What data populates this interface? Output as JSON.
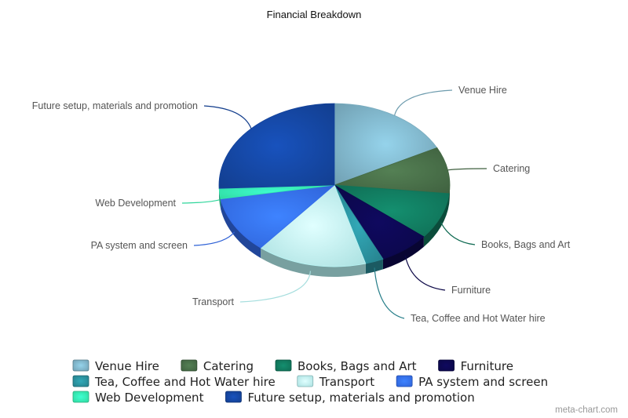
{
  "chart_data": {
    "type": "pie",
    "title": "Financial Breakdown",
    "credit": "meta-chart.com",
    "legend_placement": "bottom",
    "slices": [
      {
        "label": "Venue Hire",
        "value": 17,
        "color": "#6e9cae"
      },
      {
        "label": "Catering",
        "value": 9,
        "color": "#3e5f3e"
      },
      {
        "label": "Books, Bags and Art",
        "value": 9,
        "color": "#0f6a52"
      },
      {
        "label": "Furniture",
        "value": 7,
        "color": "#0b0746"
      },
      {
        "label": "Tea, Coffee and Hot Water hire",
        "value": 2.5,
        "color": "#257d88"
      },
      {
        "label": "Transport",
        "value": 15,
        "color": "#a6dede"
      },
      {
        "label": "PA system and screen",
        "value": 11,
        "color": "#2e61d6"
      },
      {
        "label": "Web Development",
        "value": 2,
        "color": "#2fd69b"
      },
      {
        "label": "Future setup, materials and promotion",
        "value": 25,
        "color": "#123d8c"
      }
    ]
  }
}
